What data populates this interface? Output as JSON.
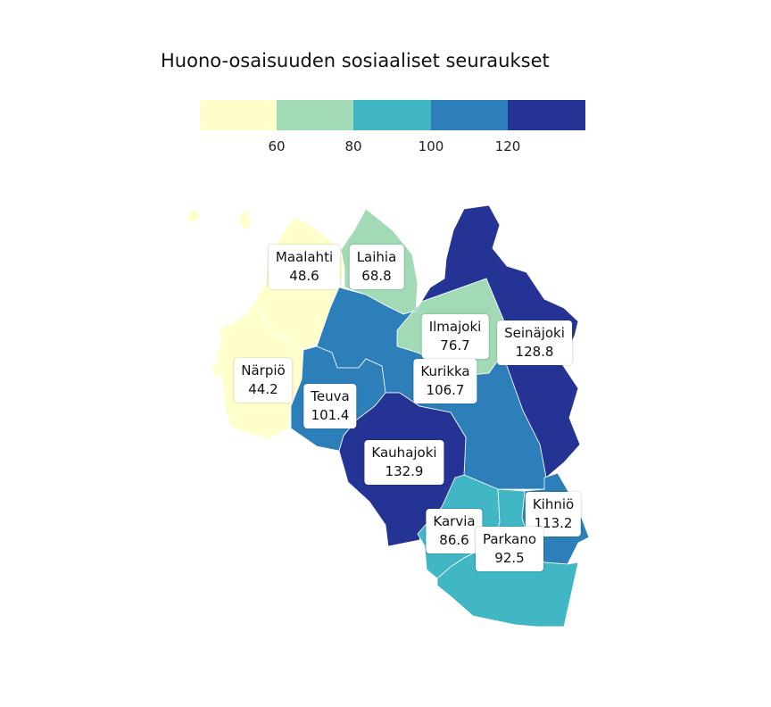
{
  "title": "Huono-osaisuuden sosiaaliset seuraukset",
  "legend": {
    "bins": [
      {
        "color": "#ffffcc"
      },
      {
        "color": "#a1dab4"
      },
      {
        "color": "#41b6c4"
      },
      {
        "color": "#2c7fb8"
      },
      {
        "color": "#253494"
      }
    ],
    "ticks": [
      "60",
      "80",
      "100",
      "120"
    ]
  },
  "regions": [
    {
      "name": "Maalahti",
      "value": "48.6",
      "color": "#ffffcc"
    },
    {
      "name": "Närpiö",
      "value": "44.2",
      "color": "#ffffcc"
    },
    {
      "name": "Laihia",
      "value": "68.8",
      "color": "#a1dab4"
    },
    {
      "name": "Ilmajoki",
      "value": "76.7",
      "color": "#a1dab4"
    },
    {
      "name": "Seinäjoki",
      "value": "128.8",
      "color": "#253494"
    },
    {
      "name": "Kurikka",
      "value": "106.7",
      "color": "#2c7fb8"
    },
    {
      "name": "Teuva",
      "value": "101.4",
      "color": "#2c7fb8"
    },
    {
      "name": "Kauhajoki",
      "value": "132.9",
      "color": "#253494"
    },
    {
      "name": "Karvia",
      "value": "86.6",
      "color": "#41b6c4"
    },
    {
      "name": "Parkano",
      "value": "92.5",
      "color": "#41b6c4"
    },
    {
      "name": "Kihniö",
      "value": "113.2",
      "color": "#2c7fb8"
    }
  ]
}
